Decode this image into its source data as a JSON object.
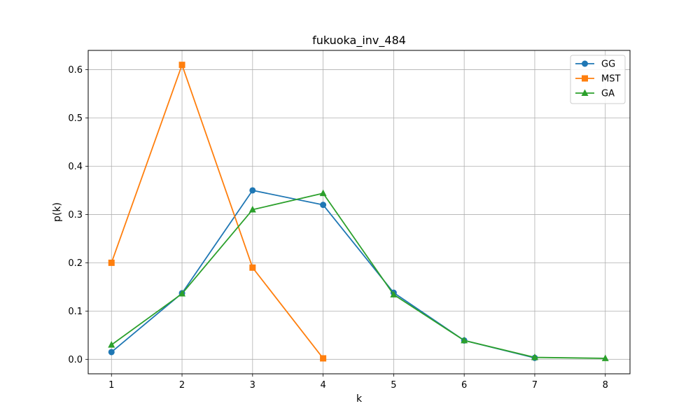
{
  "chart_data": {
    "type": "line",
    "title": "fukuoka_inv_484",
    "xlabel": "k",
    "ylabel": "p(k)",
    "xlim": [
      0.67,
      8.35
    ],
    "ylim": [
      -0.03,
      0.64
    ],
    "xticks": [
      1,
      2,
      3,
      4,
      5,
      6,
      7,
      8
    ],
    "yticks": [
      0.0,
      0.1,
      0.2,
      0.3,
      0.4,
      0.5,
      0.6
    ],
    "grid": true,
    "legend_position": "top-right",
    "series": [
      {
        "name": "GG",
        "color": "#1f77b4",
        "marker": "circle",
        "x": [
          1,
          2,
          3,
          4,
          5,
          6,
          7
        ],
        "values": [
          0.015,
          0.137,
          0.35,
          0.32,
          0.138,
          0.039,
          0.003
        ]
      },
      {
        "name": "MST",
        "color": "#ff7f0e",
        "marker": "square",
        "x": [
          1,
          2,
          3,
          4
        ],
        "values": [
          0.2,
          0.61,
          0.19,
          0.002
        ]
      },
      {
        "name": "GA",
        "color": "#2ca02c",
        "marker": "triangle",
        "x": [
          1,
          2,
          3,
          4,
          5,
          6,
          7,
          8
        ],
        "values": [
          0.03,
          0.136,
          0.31,
          0.344,
          0.134,
          0.039,
          0.004,
          0.002
        ]
      }
    ]
  }
}
